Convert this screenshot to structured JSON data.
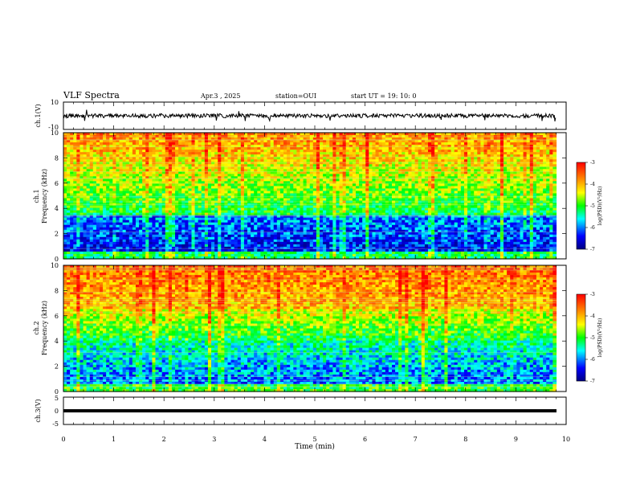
{
  "header": {
    "title": "VLF Spectra",
    "date": "Apr.3 , 2025",
    "station": "station=OUI",
    "start": "start UT = 19: 10: 0"
  },
  "chart_data": [
    {
      "type": "line",
      "ylabel": "ch.1(V)",
      "ylim": [
        -10,
        10
      ],
      "y_ticks": [
        "10",
        "-10"
      ],
      "note": "noisy waveform near 0 V"
    },
    {
      "type": "heatmap",
      "ylabel_line1": "ch.1",
      "ylabel_line2": "Frequency (kHz)",
      "ylim": [
        0,
        10
      ],
      "y_ticks": [
        "0",
        "2",
        "4",
        "6",
        "8",
        "10"
      ],
      "xlim": [
        0,
        9.8
      ],
      "colorbar": {
        "label": "log(PSD)(V²/Hz)",
        "range": [
          -7,
          -3
        ],
        "ticks": [
          "-3",
          "-4",
          "-5",
          "-6",
          "-7"
        ]
      }
    },
    {
      "type": "heatmap",
      "ylabel_line1": "ch.2",
      "ylabel_line2": "Frequency (kHz)",
      "ylim": [
        0,
        10
      ],
      "y_ticks": [
        "0",
        "2",
        "4",
        "6",
        "8",
        "10"
      ],
      "xlim": [
        0,
        9.8
      ],
      "colorbar": {
        "label": "log(PSD)(V²/Hz)",
        "range": [
          -7,
          -3
        ],
        "ticks": [
          "-3",
          "-4",
          "-5",
          "-6",
          "-7"
        ]
      }
    },
    {
      "type": "line",
      "ylabel": "ch.3(V)",
      "ylim": [
        -5,
        5
      ],
      "y_ticks": [
        "5",
        "0",
        "-5"
      ],
      "note": "flat trace slightly below 0 V"
    }
  ],
  "x_axis": {
    "label": "Time (min)",
    "ticks": [
      "0",
      "1",
      "2",
      "3",
      "4",
      "5",
      "6",
      "7",
      "8",
      "9",
      "10"
    ],
    "range": [
      0,
      10
    ]
  },
  "colors": {
    "scale": [
      "#000080",
      "#0000ff",
      "#00ffff",
      "#00ff00",
      "#ffff00",
      "#ff8000",
      "#ff0000"
    ]
  }
}
